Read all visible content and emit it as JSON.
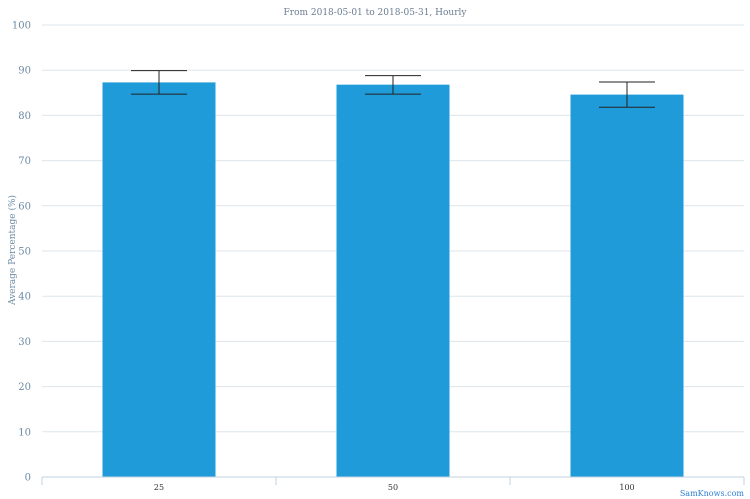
{
  "chart_data": {
    "type": "bar",
    "subtitle": "From 2018-05-01 to 2018-05-31, Hourly",
    "ylabel": "Average Percentage (%)",
    "xlabel": "",
    "categories": [
      "25",
      "50",
      "100"
    ],
    "values": [
      87.3,
      86.8,
      84.6
    ],
    "error_low": [
      84.7,
      84.7,
      81.8
    ],
    "error_high": [
      89.9,
      88.8,
      87.4
    ],
    "ylim": [
      0,
      100
    ],
    "yticks": [
      0,
      10,
      20,
      30,
      40,
      50,
      60,
      70,
      80,
      90,
      100
    ],
    "grid": true,
    "bar_color": "#1f9bd9",
    "credit": "SamKnows.com"
  }
}
